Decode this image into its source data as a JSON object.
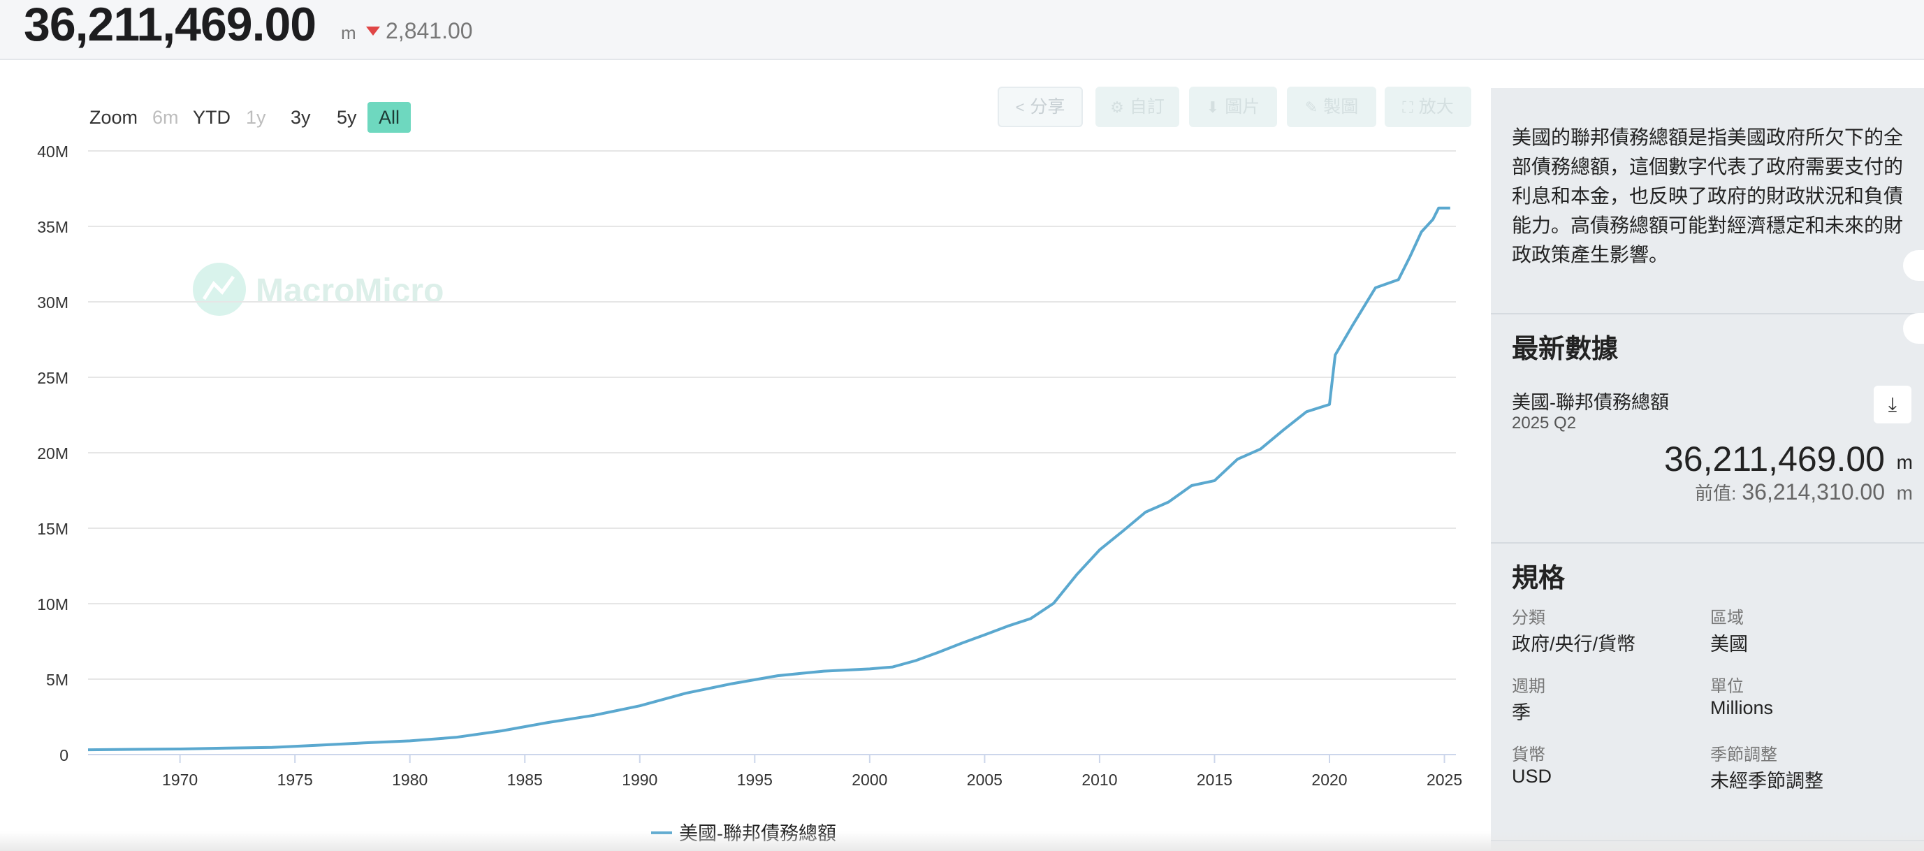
{
  "header": {
    "value": "36,211,469.00",
    "unit": "m",
    "change": "2,841.00",
    "change_color": "#e04646"
  },
  "toolbar": {
    "zoom_label": "Zoom",
    "ranges": [
      {
        "label": "6m",
        "state": "disabled"
      },
      {
        "label": "YTD",
        "state": "normal"
      },
      {
        "label": "1y",
        "state": "disabled"
      },
      {
        "label": "3y",
        "state": "normal"
      },
      {
        "label": "5y",
        "state": "normal"
      },
      {
        "label": "All",
        "state": "active"
      }
    ],
    "buttons": [
      {
        "label": "分享",
        "icon": "share-icon"
      },
      {
        "label": "自訂",
        "icon": "gear-icon"
      },
      {
        "label": "圖片",
        "icon": "download-icon"
      },
      {
        "label": "製圖",
        "icon": "pencil-icon"
      },
      {
        "label": "放大",
        "icon": "expand-icon"
      }
    ]
  },
  "watermark": "MacroMicro",
  "chart_data": {
    "type": "line",
    "title": "",
    "xlabel": "",
    "ylabel": "",
    "xlim": [
      1966,
      2025.5
    ],
    "ylim": [
      0,
      40000000
    ],
    "x_ticks": [
      "1970",
      "1975",
      "1980",
      "1985",
      "1990",
      "1995",
      "2000",
      "2005",
      "2010",
      "2015",
      "2020",
      "2025"
    ],
    "y_ticks": [
      "0",
      "5M",
      "10M",
      "15M",
      "20M",
      "25M",
      "30M",
      "35M",
      "40M"
    ],
    "grid": true,
    "legend_position": "bottom-center",
    "series": [
      {
        "name": "美國-聯邦債務總額",
        "color": "#5aa8cf",
        "points": [
          [
            1966.0,
            320000
          ],
          [
            1968.0,
            348000
          ],
          [
            1970.0,
            370000
          ],
          [
            1972.0,
            427000
          ],
          [
            1974.0,
            475000
          ],
          [
            1976.0,
            620000
          ],
          [
            1978.0,
            771000
          ],
          [
            1980.0,
            908000
          ],
          [
            1982.0,
            1142000
          ],
          [
            1984.0,
            1572000
          ],
          [
            1986.0,
            2125000
          ],
          [
            1988.0,
            2602000
          ],
          [
            1990.0,
            3233000
          ],
          [
            1992.0,
            4065000
          ],
          [
            1994.0,
            4693000
          ],
          [
            1996.0,
            5225000
          ],
          [
            1998.0,
            5526000
          ],
          [
            2000.0,
            5674000
          ],
          [
            2001.0,
            5807000
          ],
          [
            2002.0,
            6228000
          ],
          [
            2003.0,
            6783000
          ],
          [
            2004.0,
            7379000
          ],
          [
            2005.0,
            7933000
          ],
          [
            2006.0,
            8507000
          ],
          [
            2007.0,
            9008000
          ],
          [
            2008.0,
            10025000
          ],
          [
            2009.0,
            11910000
          ],
          [
            2010.0,
            13562000
          ],
          [
            2011.0,
            14790000
          ],
          [
            2012.0,
            16066000
          ],
          [
            2013.0,
            16738000
          ],
          [
            2014.0,
            17824000
          ],
          [
            2015.0,
            18151000
          ],
          [
            2016.0,
            19573000
          ],
          [
            2017.0,
            20245000
          ],
          [
            2018.0,
            21516000
          ],
          [
            2019.0,
            22719000
          ],
          [
            2020.0,
            23201000
          ],
          [
            2020.25,
            26477000
          ],
          [
            2021.0,
            28429000
          ],
          [
            2022.0,
            30929000
          ],
          [
            2023.0,
            31467000
          ],
          [
            2023.5,
            32989000
          ],
          [
            2024.0,
            34632000
          ],
          [
            2024.5,
            35465000
          ],
          [
            2024.75,
            36219000
          ],
          [
            2025.0,
            36214310
          ],
          [
            2025.25,
            36211469
          ]
        ]
      }
    ]
  },
  "sidebar": {
    "description": "美國的聯邦債務總額是指美國政府所欠下的全部債務總額，這個數字代表了政府需要支付的利息和本金，也反映了政府的財政狀況和負債能力。高債務總額可能對經濟穩定和未來的財政政策產生影響。",
    "latest_title": "最新數據",
    "series_name": "美國-聯邦債務總額",
    "period": "2025 Q2",
    "latest_value": "36,211,469.00",
    "unit": "m",
    "prev_label": "前值:",
    "prev_value": "36,214,310.00",
    "spec_title": "規格",
    "specs": [
      {
        "label": "分類",
        "value": "政府/央行/貨幣"
      },
      {
        "label": "區域",
        "value": "美國"
      },
      {
        "label": "週期",
        "value": "季"
      },
      {
        "label": "單位",
        "value": "Millions"
      },
      {
        "label": "貨幣",
        "value": "USD"
      },
      {
        "label": "季節調整",
        "value": "未經季節調整"
      }
    ]
  }
}
